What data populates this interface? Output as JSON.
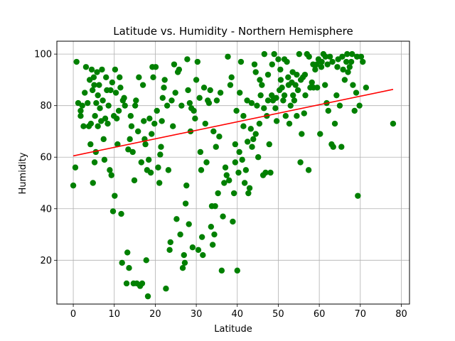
{
  "chart_data": {
    "type": "scatter",
    "title": "Latitude vs. Humidity - Northern Hemisphere",
    "xlabel": "Latitude",
    "ylabel": "Humidity",
    "xlim": [
      -4,
      82
    ],
    "ylim": [
      3,
      105
    ],
    "xticks": [
      0,
      10,
      20,
      30,
      40,
      50,
      60,
      70,
      80
    ],
    "yticks": [
      20,
      40,
      60,
      80,
      100
    ],
    "grid": true,
    "colors": {
      "points": "#008000",
      "regression": "#ff0000",
      "grid": "#b0b0b0"
    },
    "regression": {
      "x": [
        0,
        78
      ],
      "y": [
        60.5,
        86.3
      ]
    },
    "points": [
      [
        0,
        49
      ],
      [
        0.5,
        56
      ],
      [
        0.8,
        97
      ],
      [
        1.2,
        81
      ],
      [
        1.8,
        76
      ],
      [
        1.8,
        78
      ],
      [
        2.2,
        80
      ],
      [
        2.5,
        72
      ],
      [
        2.8,
        85
      ],
      [
        3.1,
        95
      ],
      [
        3.5,
        81
      ],
      [
        3.8,
        72
      ],
      [
        4.0,
        90
      ],
      [
        4.2,
        65
      ],
      [
        4.3,
        73
      ],
      [
        4.5,
        94
      ],
      [
        4.7,
        86
      ],
      [
        4.8,
        50
      ],
      [
        5.0,
        91
      ],
      [
        5.1,
        88
      ],
      [
        5.2,
        58
      ],
      [
        5.3,
        76
      ],
      [
        5.5,
        62
      ],
      [
        5.6,
        81
      ],
      [
        5.8,
        93
      ],
      [
        6.0,
        84
      ],
      [
        6.0,
        72
      ],
      [
        6.3,
        88
      ],
      [
        6.5,
        79
      ],
      [
        6.8,
        74
      ],
      [
        7.0,
        94
      ],
      [
        7.2,
        82
      ],
      [
        7.4,
        67
      ],
      [
        7.6,
        59
      ],
      [
        7.8,
        75
      ],
      [
        8.0,
        91
      ],
      [
        8.2,
        86
      ],
      [
        8.4,
        73
      ],
      [
        8.6,
        80
      ],
      [
        8.9,
        55
      ],
      [
        9.1,
        86
      ],
      [
        9.3,
        53
      ],
      [
        9.5,
        89
      ],
      [
        9.7,
        39
      ],
      [
        9.9,
        76
      ],
      [
        10.1,
        45
      ],
      [
        10.2,
        94
      ],
      [
        10.4,
        85
      ],
      [
        10.6,
        75
      ],
      [
        10.8,
        65
      ],
      [
        11.1,
        78
      ],
      [
        11.3,
        91
      ],
      [
        11.5,
        87
      ],
      [
        11.7,
        38
      ],
      [
        11.9,
        19
      ],
      [
        12.1,
        82
      ],
      [
        12.4,
        83
      ],
      [
        12.6,
        80
      ],
      [
        13.0,
        11
      ],
      [
        13.2,
        23
      ],
      [
        13.4,
        63
      ],
      [
        13.6,
        17
      ],
      [
        13.8,
        67
      ],
      [
        14.0,
        76
      ],
      [
        14.2,
        72
      ],
      [
        14.5,
        62
      ],
      [
        14.7,
        11
      ],
      [
        14.9,
        51
      ],
      [
        15.1,
        80
      ],
      [
        15.3,
        82
      ],
      [
        15.5,
        11
      ],
      [
        15.8,
        70
      ],
      [
        16.0,
        91
      ],
      [
        16.3,
        10
      ],
      [
        16.6,
        58
      ],
      [
        16.8,
        11
      ],
      [
        17.0,
        88
      ],
      [
        17.2,
        74
      ],
      [
        17.4,
        67
      ],
      [
        17.6,
        65
      ],
      [
        17.8,
        20
      ],
      [
        18.0,
        55
      ],
      [
        18.2,
        6
      ],
      [
        18.4,
        59
      ],
      [
        18.6,
        75
      ],
      [
        18.9,
        54
      ],
      [
        19.1,
        69
      ],
      [
        19.3,
        95
      ],
      [
        19.5,
        91
      ],
      [
        19.8,
        73
      ],
      [
        20.1,
        95
      ],
      [
        20.4,
        78
      ],
      [
        20.7,
        56
      ],
      [
        21.0,
        50
      ],
      [
        21.2,
        61
      ],
      [
        21.4,
        64
      ],
      [
        21.6,
        74
      ],
      [
        21.8,
        83
      ],
      [
        22.1,
        87
      ],
      [
        22.3,
        90
      ],
      [
        22.6,
        9
      ],
      [
        22.9,
        80
      ],
      [
        23.2,
        55
      ],
      [
        23.5,
        24
      ],
      [
        23.7,
        27
      ],
      [
        24.0,
        82
      ],
      [
        24.3,
        72
      ],
      [
        24.6,
        96
      ],
      [
        24.9,
        85
      ],
      [
        25.2,
        36
      ],
      [
        25.5,
        93
      ],
      [
        25.8,
        94
      ],
      [
        26.1,
        30
      ],
      [
        26.4,
        80
      ],
      [
        26.7,
        17
      ],
      [
        27.0,
        22
      ],
      [
        27.2,
        19
      ],
      [
        27.4,
        42
      ],
      [
        27.6,
        49
      ],
      [
        27.8,
        98
      ],
      [
        28.0,
        86
      ],
      [
        28.2,
        34
      ],
      [
        28.4,
        81
      ],
      [
        28.6,
        70
      ],
      [
        28.8,
        79
      ],
      [
        29.1,
        25
      ],
      [
        29.4,
        78
      ],
      [
        29.7,
        75
      ],
      [
        30.0,
        90
      ],
      [
        30.3,
        97
      ],
      [
        30.5,
        24
      ],
      [
        30.8,
        83
      ],
      [
        31.0,
        62
      ],
      [
        31.2,
        55
      ],
      [
        31.4,
        29
      ],
      [
        31.6,
        22
      ],
      [
        31.9,
        87
      ],
      [
        32.2,
        73
      ],
      [
        32.5,
        58
      ],
      [
        32.8,
        82
      ],
      [
        33.1,
        81
      ],
      [
        33.4,
        86
      ],
      [
        33.6,
        33
      ],
      [
        33.8,
        41
      ],
      [
        34.0,
        26
      ],
      [
        34.2,
        70
      ],
      [
        34.4,
        30
      ],
      [
        34.6,
        41
      ],
      [
        34.8,
        64
      ],
      [
        35.0,
        82
      ],
      [
        35.3,
        46
      ],
      [
        35.6,
        68
      ],
      [
        35.9,
        85
      ],
      [
        36.2,
        16
      ],
      [
        36.5,
        37
      ],
      [
        36.8,
        50
      ],
      [
        37.1,
        56
      ],
      [
        37.4,
        53
      ],
      [
        37.7,
        99
      ],
      [
        38.0,
        51
      ],
      [
        38.3,
        88
      ],
      [
        38.6,
        91
      ],
      [
        38.9,
        35
      ],
      [
        39.2,
        46
      ],
      [
        39.5,
        58
      ],
      [
        39.8,
        78
      ],
      [
        40.0,
        16
      ],
      [
        40.3,
        54
      ],
      [
        40.6,
        85
      ],
      [
        40.9,
        97
      ],
      [
        41.2,
        59
      ],
      [
        41.5,
        76
      ],
      [
        41.8,
        50
      ],
      [
        42.1,
        55
      ],
      [
        42.4,
        82
      ],
      [
        42.7,
        46
      ],
      [
        43.0,
        48
      ],
      [
        43.3,
        71
      ],
      [
        43.6,
        64
      ],
      [
        43.9,
        67
      ],
      [
        44.2,
        96
      ],
      [
        44.5,
        69
      ],
      [
        44.8,
        80
      ],
      [
        45.1,
        60
      ],
      [
        45.4,
        73
      ],
      [
        45.7,
        84
      ],
      [
        46.0,
        88
      ],
      [
        46.3,
        53
      ],
      [
        46.6,
        100
      ],
      [
        46.9,
        54
      ],
      [
        47.2,
        76
      ],
      [
        47.5,
        92
      ],
      [
        47.8,
        65
      ],
      [
        48.1,
        54
      ],
      [
        48.4,
        84
      ],
      [
        48.7,
        82
      ],
      [
        49.0,
        100
      ],
      [
        49.3,
        79
      ],
      [
        49.6,
        74
      ],
      [
        50.0,
        98
      ],
      [
        50.3,
        86
      ],
      [
        50.6,
        90
      ],
      [
        50.9,
        87
      ],
      [
        51.2,
        82
      ],
      [
        51.5,
        84
      ],
      [
        51.8,
        76
      ],
      [
        52.1,
        97
      ],
      [
        52.4,
        91
      ],
      [
        52.7,
        73
      ],
      [
        53.0,
        80
      ],
      [
        53.3,
        89
      ],
      [
        53.6,
        84
      ],
      [
        53.9,
        82
      ],
      [
        54.2,
        88
      ],
      [
        54.5,
        76
      ],
      [
        54.8,
        86
      ],
      [
        55.1,
        100
      ],
      [
        55.4,
        58
      ],
      [
        55.7,
        69
      ],
      [
        56.0,
        91
      ],
      [
        56.3,
        77
      ],
      [
        56.6,
        84
      ],
      [
        57.0,
        100
      ],
      [
        57.4,
        55
      ],
      [
        57.8,
        87
      ],
      [
        58.2,
        89
      ],
      [
        58.6,
        87
      ],
      [
        59.0,
        94
      ],
      [
        59.4,
        96
      ],
      [
        59.8,
        98
      ],
      [
        60.2,
        69
      ],
      [
        60.6,
        97
      ],
      [
        61.0,
        100
      ],
      [
        61.4,
        88
      ],
      [
        61.8,
        81
      ],
      [
        62.2,
        78
      ],
      [
        62.6,
        99
      ],
      [
        63.0,
        65
      ],
      [
        63.4,
        64
      ],
      [
        63.8,
        73
      ],
      [
        64.2,
        84
      ],
      [
        64.6,
        98
      ],
      [
        65.0,
        80
      ],
      [
        65.4,
        64
      ],
      [
        65.8,
        94
      ],
      [
        66.2,
        90
      ],
      [
        66.6,
        97
      ],
      [
        67.0,
        93
      ],
      [
        67.4,
        95
      ],
      [
        67.8,
        97
      ],
      [
        68.2,
        88
      ],
      [
        68.6,
        78
      ],
      [
        69.0,
        85
      ],
      [
        69.4,
        45
      ],
      [
        69.8,
        80
      ],
      [
        70.2,
        99
      ],
      [
        70.6,
        97
      ],
      [
        71.4,
        87
      ],
      [
        78.0,
        73
      ],
      [
        62.0,
        96
      ],
      [
        63.2,
        97
      ],
      [
        64.4,
        95
      ],
      [
        65.6,
        99
      ],
      [
        66.8,
        100
      ],
      [
        68.0,
        100
      ],
      [
        69.2,
        99
      ],
      [
        61.5,
        99
      ],
      [
        60.5,
        95
      ],
      [
        59.5,
        87
      ],
      [
        58.5,
        96
      ],
      [
        57.5,
        99
      ],
      [
        56.5,
        92
      ],
      [
        55.5,
        90
      ],
      [
        54.5,
        92
      ],
      [
        53.5,
        93
      ],
      [
        52.5,
        88
      ],
      [
        51.5,
        98
      ],
      [
        50.5,
        94
      ],
      [
        49.5,
        83
      ],
      [
        48.5,
        96
      ],
      [
        47.5,
        82
      ],
      [
        46.5,
        79
      ],
      [
        45.5,
        90
      ],
      [
        44.5,
        93
      ],
      [
        43.5,
        81
      ],
      [
        42.5,
        66
      ],
      [
        41.5,
        72
      ],
      [
        40.5,
        62
      ],
      [
        39.5,
        65
      ]
    ]
  }
}
